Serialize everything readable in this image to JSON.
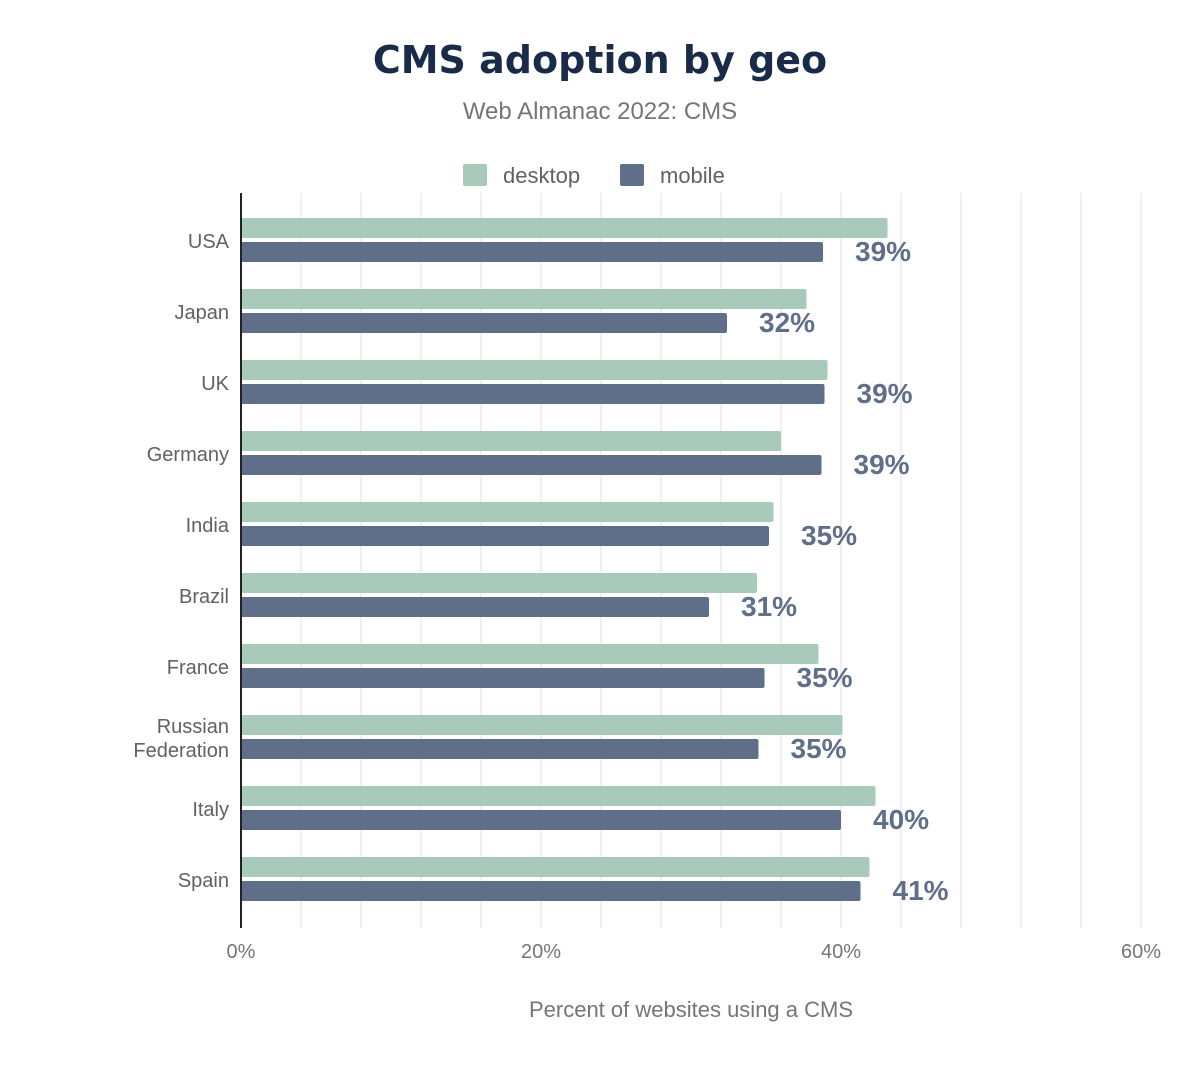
{
  "chart_data": {
    "type": "bar",
    "orientation": "horizontal",
    "title": "CMS adoption by geo",
    "subtitle": "Web Almanac 2022: CMS",
    "xlabel": "Percent of websites using a CMS",
    "ylabel": "",
    "xlim": [
      0,
      60
    ],
    "x_ticks": [
      "0%",
      "20%",
      "40%",
      "60%"
    ],
    "grid": true,
    "legend_position": "top",
    "categories": [
      "USA",
      "Japan",
      "UK",
      "Germany",
      "India",
      "Brazil",
      "France",
      "Russian Federation",
      "Italy",
      "Spain"
    ],
    "series": [
      {
        "name": "desktop",
        "color": "#a8cabb",
        "values": [
          43.1,
          37.7,
          39.1,
          36.0,
          35.5,
          34.4,
          38.5,
          40.1,
          42.3,
          41.9
        ]
      },
      {
        "name": "mobile",
        "color": "#5f6f8a",
        "values": [
          38.8,
          32.4,
          38.9,
          38.7,
          35.2,
          31.2,
          34.9,
          34.5,
          40.0,
          41.3
        ]
      }
    ],
    "data_labels": [
      "39%",
      "32%",
      "39%",
      "39%",
      "35%",
      "31%",
      "35%",
      "35%",
      "40%",
      "41%"
    ]
  }
}
